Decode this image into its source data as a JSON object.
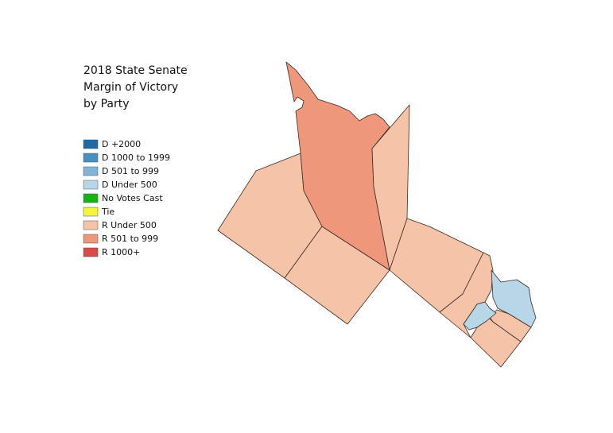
{
  "title_lines": [
    "2018 State Senate",
    "Margin of Victory",
    "by Party"
  ],
  "legend": [
    {
      "label": "D +2000",
      "color": "#1f6aa5"
    },
    {
      "label": "D 1000 to 1999",
      "color": "#4a8fc4"
    },
    {
      "label": "D 501 to 999",
      "color": "#80b5d9"
    },
    {
      "label": "D Under 500",
      "color": "#b7d7e9"
    },
    {
      "label": "No Votes Cast",
      "color": "#14b414"
    },
    {
      "label": "Tie",
      "color": "#f4f43c"
    },
    {
      "label": "R Under 500",
      "color": "#f5c3a8"
    },
    {
      "label": "R 501 to 999",
      "color": "#ee977b"
    },
    {
      "label": "R 1000+",
      "color": "#d94a4a"
    }
  ]
}
